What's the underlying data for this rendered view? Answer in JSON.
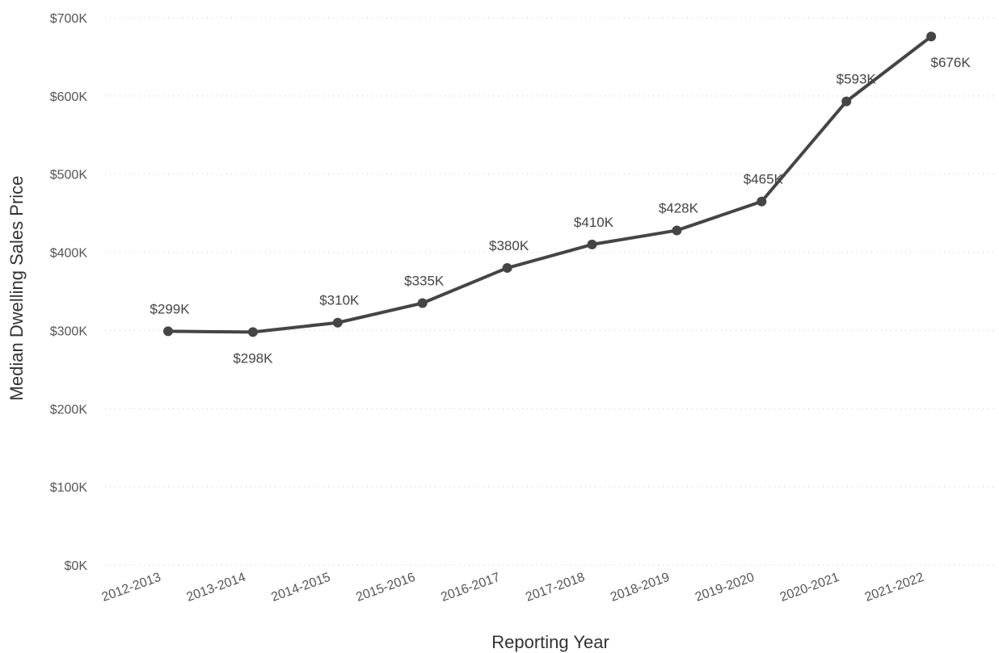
{
  "chart_data": {
    "type": "line",
    "title": "",
    "xlabel": "Reporting Year",
    "ylabel": "Median Dwelling Sales Price",
    "categories": [
      "2012-2013",
      "2013-2014",
      "2014-2015",
      "2015-2016",
      "2016-2017",
      "2017-2018",
      "2018-2019",
      "2019-2020",
      "2020-2021",
      "2021-2022"
    ],
    "values": [
      299,
      298,
      310,
      335,
      380,
      410,
      428,
      465,
      593,
      676
    ],
    "data_labels": [
      "$299K",
      "$298K",
      "$310K",
      "$335K",
      "$380K",
      "$410K",
      "$428K",
      "$465K",
      "$593K",
      "$676K"
    ],
    "ylim": [
      0,
      700
    ],
    "yticks": [
      0,
      100,
      200,
      300,
      400,
      500,
      600,
      700
    ],
    "ytick_labels": [
      "$0K",
      "$100K",
      "$200K",
      "$300K",
      "$400K",
      "$500K",
      "$600K",
      "$700K"
    ],
    "grid": true,
    "line_color": "#454545"
  }
}
